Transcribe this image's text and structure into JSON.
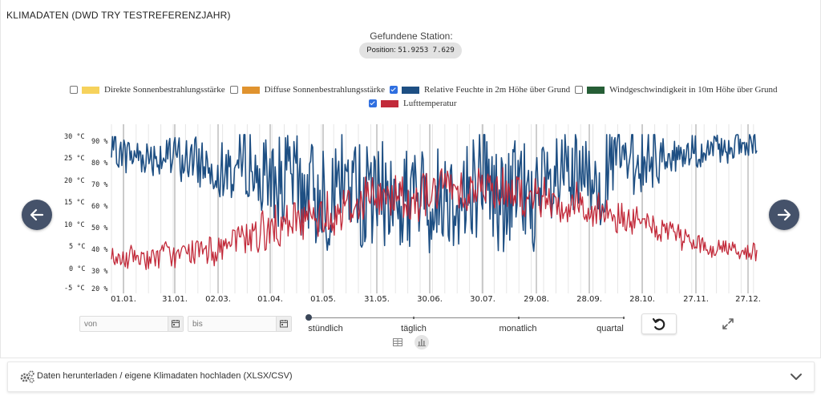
{
  "panel": {
    "title": "KLIMADATEN (DWD TRY TESTREFERENZJAHR)",
    "station_label": "Gefundene Station:",
    "position_label": "Position:",
    "position_value": "51.9253 7.629"
  },
  "legend": {
    "items": [
      {
        "label": "Direkte Sonnenbestrahlungsstärke",
        "color": "#f6d25c",
        "checked": false
      },
      {
        "label": "Diffuse Sonnenbestrahlungsstärke",
        "color": "#e0932f",
        "checked": false
      },
      {
        "label": "Relative Feuchte in 2m Höhe über Grund",
        "color": "#1e4f83",
        "checked": true
      },
      {
        "label": "Windgeschwindigkeit in 10m Höhe über Grund",
        "color": "#265e36",
        "checked": false
      },
      {
        "label": "Lufttemperatur",
        "color": "#c22a3a",
        "checked": true
      }
    ]
  },
  "chart_data": {
    "type": "line",
    "title": "",
    "x_ticks": [
      "01.01.",
      "31.01.",
      "02.03.",
      "01.04.",
      "01.05.",
      "31.05.",
      "30.06.",
      "30.07.",
      "29.08.",
      "28.09.",
      "28.10.",
      "27.11.",
      "27.12."
    ],
    "y_left_ticks": [
      "30 °C",
      "25 °C",
      "20 °C",
      "15 °C",
      "10 °C",
      "5 °C",
      "0 °C",
      "-5 °C"
    ],
    "y_right_ticks": [
      "90 %",
      "80 %",
      "70 %",
      "60 %",
      "50 %",
      "40 %",
      "30 %",
      "20 %"
    ],
    "y_left_range": [
      -5,
      30
    ],
    "y_right_range": [
      20,
      90
    ],
    "series": [
      {
        "name": "Relative Feuchte in 2m Höhe über Grund",
        "unit": "%",
        "axis": "right",
        "color": "#1e4f83",
        "month_mean": [
          85,
          82,
          78,
          70,
          67,
          66,
          67,
          66,
          73,
          81,
          86,
          87
        ],
        "month_amplitude": [
          7,
          10,
          15,
          22,
          24,
          25,
          25,
          26,
          22,
          15,
          8,
          6
        ]
      },
      {
        "name": "Lufttemperatur",
        "unit": "°C",
        "axis": "left",
        "color": "#c22a3a",
        "month_mean": [
          2.5,
          3,
          6,
          10,
          14.5,
          16.5,
          18,
          17.5,
          14.5,
          10.5,
          6,
          4
        ],
        "month_amplitude": [
          3,
          3.5,
          5,
          6,
          6.5,
          6.5,
          6.5,
          6.5,
          5.5,
          4,
          3,
          3
        ]
      }
    ]
  },
  "controls": {
    "from_placeholder": "von",
    "to_placeholder": "bis",
    "resolution_options": [
      "stündlich",
      "täglich",
      "monatlich",
      "quartal"
    ]
  },
  "download": {
    "label": "Daten herunterladen / eigene Klimadaten hochladen (XLSX/CSV)"
  }
}
